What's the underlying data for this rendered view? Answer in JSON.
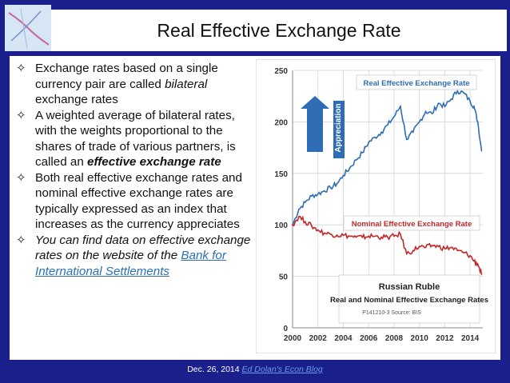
{
  "slide": {
    "title": "Real Effective Exchange Rate",
    "footer_date": "Dec. 26, 2014",
    "footer_link": "Ed Dolan's Econ Blog"
  },
  "bullets": [
    {
      "pre": "Exchange rates based on a single currency pair are called ",
      "em": "bilateral",
      "post": " exchange rates"
    },
    {
      "pre": "A weighted average of bilateral rates, with the weights proportional to the shares of trade of various partners, is called an ",
      "strong": "effective exchange rate",
      "post": ""
    },
    {
      "text": "Both real effective exchange rates and nominal effective exchange rates are typically expressed as an index that increases as the currency appreciates"
    },
    {
      "pre": "You can find data on effective exchange rates on the website of the ",
      "link": "Bank for International Settlements"
    }
  ],
  "chart_data": {
    "type": "line",
    "title": "Russian Ruble",
    "subtitle": "Real and Nominal Effective Exchange Rates",
    "source": "P141210-3 Source: BIS",
    "arrow_label": "Appreciation",
    "xlim": [
      2000,
      2015
    ],
    "ylim": [
      0,
      250
    ],
    "x_ticks": [
      "2000",
      "2002",
      "2004",
      "2006",
      "2008",
      "2010",
      "2012",
      "2014"
    ],
    "y_ticks": [
      "0",
      "50",
      "100",
      "150",
      "200",
      "250"
    ],
    "series": [
      {
        "name": "Real Effective Exchange Rate",
        "color": "#2e6db4",
        "x": [
          2000,
          2000.5,
          2001,
          2001.5,
          2002,
          2002.5,
          2003,
          2003.5,
          2004,
          2004.5,
          2005,
          2005.5,
          2006,
          2006.5,
          2007,
          2007.5,
          2008,
          2008.5,
          2009,
          2009.5,
          2010,
          2010.5,
          2011,
          2011.5,
          2012,
          2012.5,
          2013,
          2013.5,
          2014,
          2014.3,
          2014.6,
          2014.9
        ],
        "values": [
          100,
          115,
          122,
          128,
          130,
          133,
          136,
          140,
          148,
          155,
          163,
          170,
          180,
          185,
          190,
          197,
          205,
          215,
          183,
          190,
          200,
          210,
          208,
          218,
          215,
          222,
          230,
          228,
          220,
          215,
          200,
          172
        ]
      },
      {
        "name": "Nominal Effective Exchange Rate",
        "color": "#c0282a",
        "x": [
          2000,
          2000.5,
          2001,
          2001.5,
          2002,
          2002.5,
          2003,
          2003.5,
          2004,
          2004.5,
          2005,
          2005.5,
          2006,
          2006.5,
          2007,
          2007.5,
          2008,
          2008.5,
          2009,
          2009.5,
          2010,
          2010.5,
          2011,
          2011.5,
          2012,
          2012.5,
          2013,
          2013.5,
          2014,
          2014.3,
          2014.6,
          2014.9
        ],
        "values": [
          100,
          108,
          103,
          99,
          95,
          92,
          91,
          90,
          90,
          89,
          88,
          88,
          89,
          89,
          88,
          88,
          89,
          91,
          72,
          75,
          79,
          78,
          80,
          79,
          77,
          78,
          75,
          73,
          70,
          65,
          62,
          52
        ]
      }
    ]
  }
}
